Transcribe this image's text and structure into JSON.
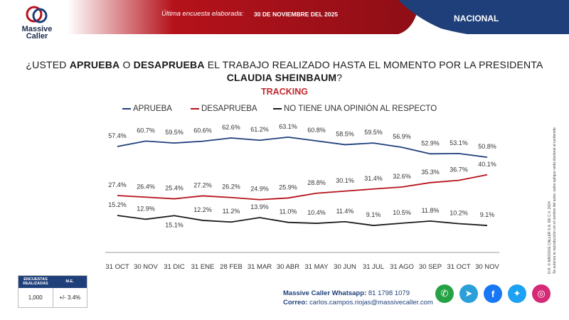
{
  "header": {
    "brand": "Massive Caller",
    "brand_line1": "Massive",
    "brand_line2": "Caller",
    "last_survey_label": "Última encuesta elaborada:",
    "last_survey_date": "30 DE NOVIEMBRE DEL 2025",
    "scope": "NACIONAL",
    "colors": {
      "red": "#b5121b",
      "navy": "#1e3f7a"
    }
  },
  "question": {
    "p1": "¿USTED ",
    "b1": "APRUEBA",
    "p2": " O ",
    "b2": "DESAPRUEBA",
    "p3": " EL TRABAJO REALIZADO HASTA EL MOMENTO POR LA PRESIDENTA ",
    "b3": "CLAUDIA SHEINBAUM",
    "p4": "?"
  },
  "chart_data": {
    "type": "line",
    "title": "TRACKING",
    "categories": [
      "31 OCT",
      "30 NOV",
      "31 DIC",
      "31 ENE",
      "28 FEB",
      "31 MAR",
      "30 ABR",
      "31 MAY",
      "30 JUN",
      "31 JUL",
      "31 AGO",
      "30 SEP",
      "31 OCT",
      "30 NOV"
    ],
    "series": [
      {
        "name": "APRUEBA",
        "color": "#1e3f7a",
        "values": [
          57.4,
          60.7,
          59.5,
          60.6,
          62.6,
          61.2,
          63.1,
          60.8,
          58.5,
          59.5,
          56.9,
          52.9,
          53.1,
          50.8
        ],
        "labels": [
          "57.4%",
          "60.7%",
          "59.5%",
          "60.6%",
          "62.6%",
          "61.2%",
          "63.1%",
          "60.8%",
          "58.5%",
          "59.5%",
          "56.9%",
          "52.9%",
          "53.1%",
          "50.8%"
        ]
      },
      {
        "name": "DESAPRUEBA",
        "color": "#b5121b",
        "values": [
          27.4,
          26.4,
          25.4,
          27.2,
          26.2,
          24.9,
          25.9,
          28.8,
          30.1,
          31.4,
          32.6,
          35.3,
          36.7,
          40.1
        ],
        "labels": [
          "27.4%",
          "26.4%",
          "25.4%",
          "27.2%",
          "26.2%",
          "24.9%",
          "25.9%",
          "28.8%",
          "30.1%",
          "31.4%",
          "32.6%",
          "35.3%",
          "36.7%",
          "40.1%"
        ]
      },
      {
        "name": "NO TIENE UNA OPINIÓN AL RESPECTO",
        "color": "#1a1a1a",
        "values": [
          15.2,
          12.9,
          15.1,
          12.2,
          11.2,
          13.9,
          11.0,
          10.4,
          11.4,
          9.1,
          10.5,
          11.8,
          10.2,
          9.1
        ],
        "labels": [
          "15.2%",
          "12.9%",
          "15.1%",
          "12.2%",
          "11.2%",
          "13.9%",
          "11.0%",
          "10.4%",
          "11.4%",
          "9.1%",
          "10.5%",
          "11.8%",
          "10.2%",
          "9.1%"
        ]
      }
    ],
    "legend_position": "top",
    "grid": false
  },
  "side_note": {
    "line1": "D.R. © MASSIVE CALLER S.A. DE C.V. 2024",
    "line2": "Se autoriza la reproducción sin el nombre del autor, salvo aplique veda electoral al contenido"
  },
  "stats": {
    "h1": "ENCUESTAS REALIZADAS",
    "h2": "M.E.",
    "v1": "1,000",
    "v2": "+/- 3.4%"
  },
  "footer": {
    "whatsapp_label": "Massive Caller Whatsapp:",
    "whatsapp_number": "81 1798 1079",
    "mail_label": "Correo:",
    "mail_address": "carlos.campos.riojas@massivecaller.com"
  },
  "socials": [
    {
      "name": "whatsapp",
      "glyph": "✆",
      "color": "#25a244"
    },
    {
      "name": "telegram",
      "glyph": "➤",
      "color": "#2a9fd8"
    },
    {
      "name": "facebook",
      "glyph": "f",
      "color": "#1877f2"
    },
    {
      "name": "twitter",
      "glyph": "✦",
      "color": "#1da1f2"
    },
    {
      "name": "instagram",
      "glyph": "◎",
      "color": "#d62976"
    }
  ]
}
